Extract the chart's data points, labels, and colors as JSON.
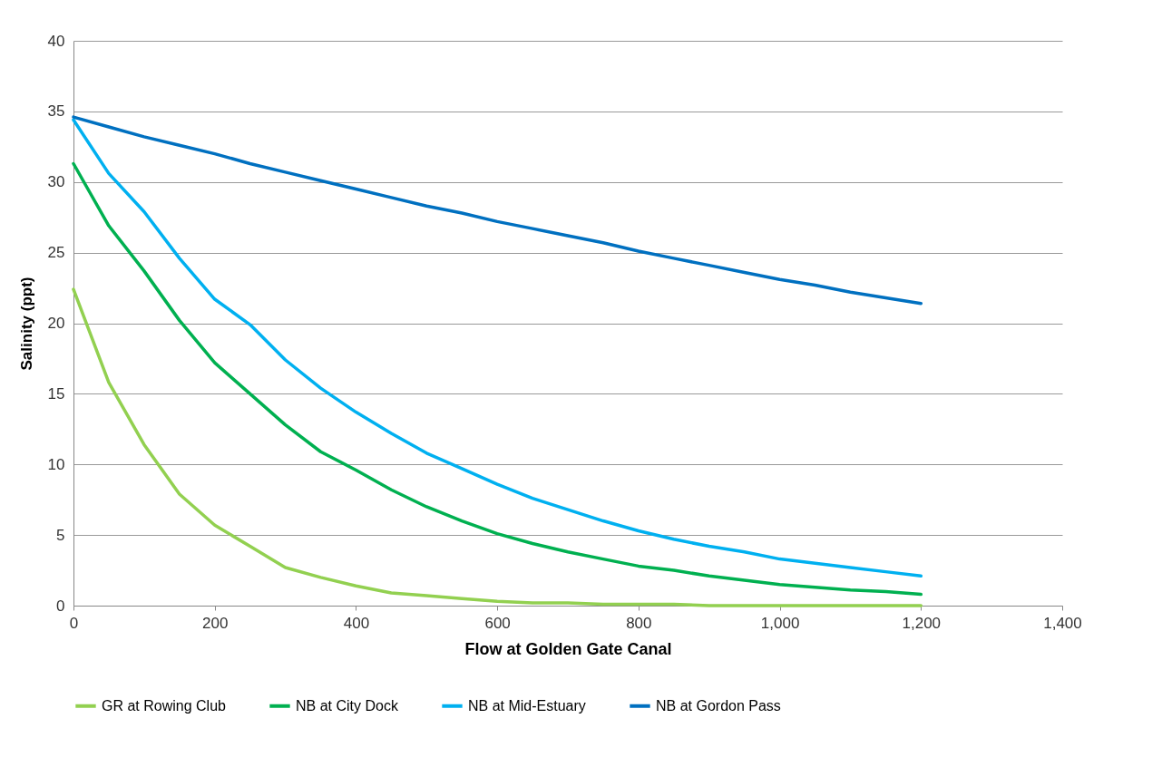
{
  "chart_data": {
    "type": "line",
    "xlabel": "Flow at Golden Gate Canal",
    "ylabel": "Salinity (ppt)",
    "x": [
      0,
      50,
      100,
      150,
      200,
      250,
      300,
      350,
      400,
      450,
      500,
      550,
      600,
      650,
      700,
      750,
      800,
      850,
      900,
      950,
      1000,
      1050,
      1100,
      1150,
      1200
    ],
    "series": [
      {
        "name": "GR at Rowing Club",
        "color": "#92d050",
        "values": [
          22.4,
          15.8,
          11.4,
          7.9,
          5.7,
          4.2,
          2.7,
          2.0,
          1.4,
          0.9,
          0.7,
          0.5,
          0.3,
          0.2,
          0.2,
          0.1,
          0.1,
          0.1,
          0,
          0,
          0,
          0,
          0,
          0,
          0
        ]
      },
      {
        "name": "NB at City Dock",
        "color": "#00b050",
        "values": [
          31.3,
          26.9,
          23.7,
          20.2,
          17.2,
          15.0,
          12.8,
          10.9,
          9.6,
          8.2,
          7.0,
          6.0,
          5.1,
          4.4,
          3.8,
          3.3,
          2.8,
          2.5,
          2.1,
          1.8,
          1.5,
          1.3,
          1.1,
          1.0,
          0.8
        ]
      },
      {
        "name": "NB at Mid-Estuary",
        "color": "#00b0f0",
        "values": [
          34.4,
          30.6,
          27.9,
          24.6,
          21.7,
          19.9,
          17.4,
          15.4,
          13.7,
          12.2,
          10.8,
          9.7,
          8.6,
          7.6,
          6.8,
          6.0,
          5.3,
          4.7,
          4.2,
          3.8,
          3.3,
          3.0,
          2.7,
          2.4,
          2.1
        ]
      },
      {
        "name": "NB at Gordon Pass",
        "color": "#0070c0",
        "values": [
          34.6,
          33.9,
          33.2,
          32.6,
          32.0,
          31.3,
          30.7,
          30.1,
          29.5,
          28.9,
          28.3,
          27.8,
          27.2,
          26.7,
          26.2,
          25.7,
          25.1,
          24.6,
          24.1,
          23.6,
          23.1,
          22.7,
          22.2,
          21.8,
          21.4
        ]
      }
    ],
    "xlim": [
      0,
      1400
    ],
    "xticks": [
      0,
      200,
      400,
      600,
      800,
      {
        "value": 1000,
        "label": "1,000"
      },
      {
        "value": 1200,
        "label": "1,200"
      },
      {
        "value": 1400,
        "label": "1,400"
      }
    ],
    "ylim": [
      0,
      40
    ],
    "yticks": [
      0,
      5,
      10,
      15,
      20,
      25,
      30,
      35,
      40
    ],
    "grid": "y",
    "legend": "bottom",
    "marker": "none",
    "line_style": "solid"
  }
}
